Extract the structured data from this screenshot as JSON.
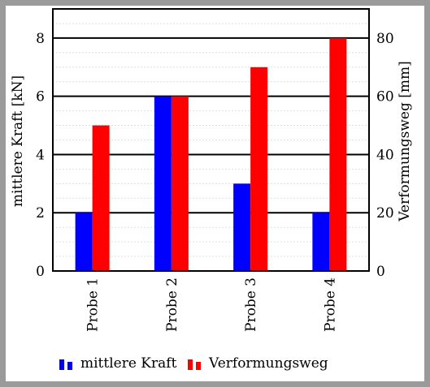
{
  "chart_data": {
    "type": "bar",
    "categories": [
      "Probe 1",
      "Probe 2",
      "Probe 3",
      "Probe 4"
    ],
    "series": [
      {
        "name": "mittlere Kraft",
        "axis": "left",
        "color": "#0000ff",
        "values": [
          2,
          6,
          3,
          2
        ]
      },
      {
        "name": "Verformungsweg",
        "axis": "right",
        "color": "#ff0000",
        "values": [
          50,
          60,
          70,
          80
        ]
      }
    ],
    "ylabel": "mittlere Kraft [kN]",
    "ylabel_right": "Verformungsweg [mm]",
    "ylim": [
      0,
      9
    ],
    "ylim_right": [
      0,
      90
    ],
    "yticks": [
      0,
      2,
      4,
      6,
      8
    ],
    "yticks_right": [
      0,
      20,
      40,
      60,
      80
    ],
    "grid": true,
    "legend_position": "bottom"
  }
}
